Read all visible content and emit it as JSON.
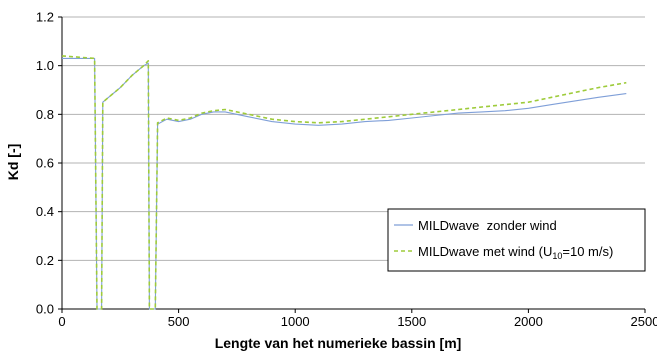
{
  "chart_data": {
    "type": "line",
    "xlabel": "Lengte van het numerieke bassin [m]",
    "ylabel": "Kd [-]",
    "xlim": [
      0,
      2500
    ],
    "ylim": [
      0,
      1.2
    ],
    "x_ticks": [
      "0",
      "500",
      "1000",
      "1500",
      "2000",
      "2500"
    ],
    "y_ticks": [
      "0.0",
      "0.2",
      "0.4",
      "0.6",
      "0.8",
      "1.0",
      "1.2"
    ],
    "grid": "horizontal",
    "legend_position": "lower-right",
    "series": [
      {
        "name": "MILDwave  zonder wind",
        "color": "#7f9fd8",
        "style": "solid",
        "x": [
          0,
          140,
          150,
          155,
          170,
          175,
          200,
          250,
          300,
          350,
          370,
          375,
          390,
          400,
          410,
          450,
          500,
          550,
          600,
          650,
          700,
          800,
          900,
          1000,
          1100,
          1200,
          1300,
          1400,
          1500,
          1600,
          1700,
          1800,
          1900,
          2000,
          2100,
          2200,
          2300,
          2420
        ],
        "y": [
          1.03,
          1.03,
          0.0,
          0.0,
          0.0,
          0.85,
          0.87,
          0.91,
          0.96,
          1.0,
          1.01,
          0.0,
          0.0,
          0.0,
          0.76,
          0.78,
          0.77,
          0.78,
          0.8,
          0.81,
          0.81,
          0.79,
          0.77,
          0.76,
          0.755,
          0.76,
          0.77,
          0.775,
          0.785,
          0.795,
          0.805,
          0.81,
          0.815,
          0.825,
          0.84,
          0.855,
          0.87,
          0.885
        ]
      },
      {
        "name": "MILDwave met wind (U10=10 m/s)",
        "color": "#9ecb3a",
        "style": "dashed",
        "x": [
          0,
          140,
          150,
          155,
          170,
          175,
          200,
          250,
          300,
          350,
          370,
          375,
          390,
          400,
          410,
          450,
          500,
          550,
          600,
          650,
          700,
          800,
          900,
          1000,
          1100,
          1200,
          1300,
          1400,
          1500,
          1600,
          1700,
          1800,
          1900,
          2000,
          2100,
          2200,
          2300,
          2420
        ],
        "y": [
          1.04,
          1.03,
          0.0,
          0.0,
          0.0,
          0.85,
          0.87,
          0.91,
          0.96,
          1.0,
          1.02,
          0.0,
          0.0,
          0.0,
          0.765,
          0.785,
          0.775,
          0.785,
          0.805,
          0.815,
          0.82,
          0.8,
          0.78,
          0.77,
          0.765,
          0.77,
          0.78,
          0.79,
          0.8,
          0.81,
          0.82,
          0.83,
          0.84,
          0.85,
          0.87,
          0.89,
          0.91,
          0.93
        ]
      }
    ],
    "legend": {
      "entry1": "MILDwave  zonder wind",
      "entry2_prefix": "MILDwave met wind (U",
      "entry2_sub": "10",
      "entry2_suffix": "=10 m/s)"
    }
  }
}
